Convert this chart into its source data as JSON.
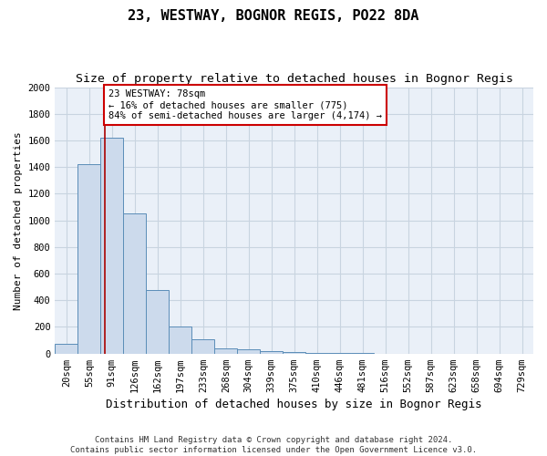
{
  "title": "23, WESTWAY, BOGNOR REGIS, PO22 8DA",
  "subtitle": "Size of property relative to detached houses in Bognor Regis",
  "xlabel": "Distribution of detached houses by size in Bognor Regis",
  "ylabel": "Number of detached properties",
  "bar_labels": [
    "20sqm",
    "55sqm",
    "91sqm",
    "126sqm",
    "162sqm",
    "197sqm",
    "233sqm",
    "268sqm",
    "304sqm",
    "339sqm",
    "375sqm",
    "410sqm",
    "446sqm",
    "481sqm",
    "516sqm",
    "552sqm",
    "587sqm",
    "623sqm",
    "658sqm",
    "694sqm",
    "729sqm"
  ],
  "bar_values": [
    75,
    1420,
    1620,
    1050,
    480,
    200,
    110,
    40,
    30,
    20,
    15,
    5,
    3,
    2,
    1,
    1,
    1,
    1,
    0,
    0,
    0
  ],
  "bar_color": "#ccdaec",
  "bar_edgecolor": "#5b8db8",
  "red_line_x": 1.7,
  "annotation_text": "23 WESTWAY: 78sqm\n← 16% of detached houses are smaller (775)\n84% of semi-detached houses are larger (4,174) →",
  "annotation_box_color": "#ffffff",
  "annotation_box_edgecolor": "#cc0000",
  "red_line_color": "#aa0000",
  "ylim": [
    0,
    2000
  ],
  "yticks": [
    0,
    200,
    400,
    600,
    800,
    1000,
    1200,
    1400,
    1600,
    1800,
    2000
  ],
  "grid_color": "#c8d4e0",
  "background_color": "#eaf0f8",
  "footer_text": "Contains HM Land Registry data © Crown copyright and database right 2024.\nContains public sector information licensed under the Open Government Licence v3.0.",
  "title_fontsize": 11,
  "subtitle_fontsize": 9.5,
  "xlabel_fontsize": 9,
  "ylabel_fontsize": 8,
  "tick_fontsize": 7.5,
  "footer_fontsize": 6.5
}
